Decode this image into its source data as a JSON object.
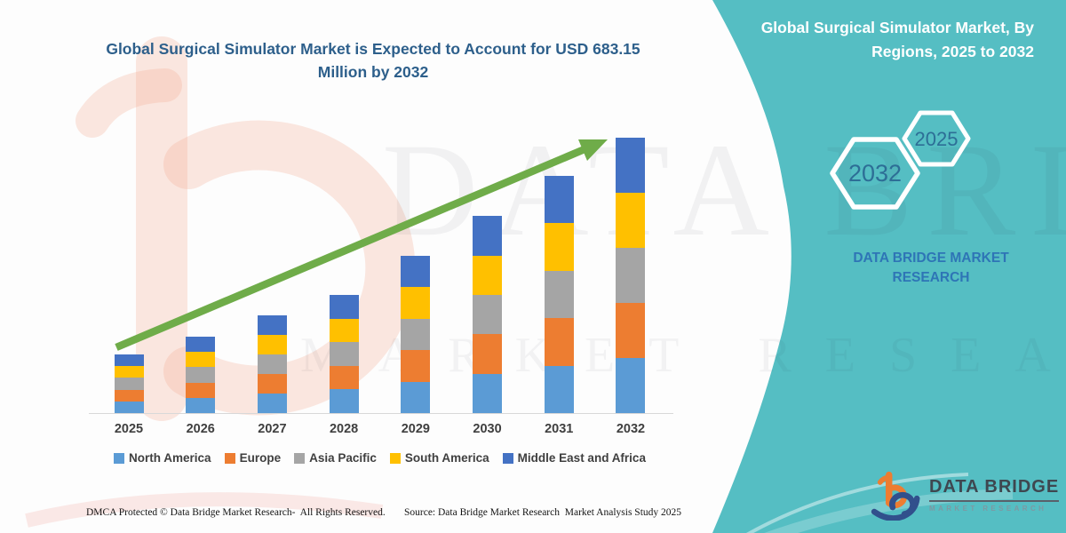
{
  "header": {
    "title": "Global Surgical Simulator Market is Expected to Account for USD 683.15 Million by 2032"
  },
  "side_panel": {
    "heading": "Global Surgical Simulator Market, By Regions, 2025 to 2032",
    "hexagons": [
      {
        "label": "2032"
      },
      {
        "label": "2025"
      }
    ],
    "brand_text": "DATA BRIDGE MARKET RESEARCH",
    "accent_color": "#55BEC3"
  },
  "chart_data": {
    "type": "bar",
    "stacked": true,
    "unit": "USD Million",
    "categories": [
      "2025",
      "2026",
      "2027",
      "2028",
      "2029",
      "2030",
      "2031",
      "2032"
    ],
    "series": [
      {
        "name": "North America",
        "color": "#5B9BD5",
        "values": [
          29.1,
          37.9,
          48.5,
          58.6,
          78.0,
          97.8,
          117.7,
          136.63
        ]
      },
      {
        "name": "Europe",
        "color": "#ED7D31",
        "values": [
          29.1,
          37.9,
          48.5,
          58.6,
          78.0,
          97.8,
          117.7,
          136.63
        ]
      },
      {
        "name": "Asia Pacific",
        "color": "#A5A5A5",
        "values": [
          29.1,
          37.9,
          48.5,
          58.6,
          78.0,
          97.8,
          117.7,
          136.63
        ]
      },
      {
        "name": "South America",
        "color": "#FFC000",
        "values": [
          29.1,
          37.9,
          48.5,
          58.6,
          78.0,
          97.8,
          117.7,
          136.63
        ]
      },
      {
        "name": "Middle East and Africa",
        "color": "#4472C4",
        "values": [
          29.1,
          37.9,
          48.5,
          58.6,
          78.0,
          97.8,
          117.7,
          136.63
        ]
      }
    ],
    "totals": [
      145.5,
      189.5,
      242.5,
      293.0,
      390.0,
      489.0,
      588.5,
      683.15
    ],
    "ylim": [
      0,
      700
    ],
    "grid": false,
    "legend_position": "bottom",
    "trend_arrow": true,
    "trend_arrow_color": "#70AD47"
  },
  "footer": {
    "left": "DMCA Protected © Data Bridge Market Research-  All Rights Reserved.",
    "source": "Source: Data Bridge Market Research  Market Analysis Study 2025"
  },
  "logo": {
    "name_top": "DATA BRIDGE",
    "name_bottom": "MARKET RESEARCH"
  },
  "watermark": {
    "line1": "DATA BRIDGE",
    "line2": "MARKET RESEARCH"
  }
}
